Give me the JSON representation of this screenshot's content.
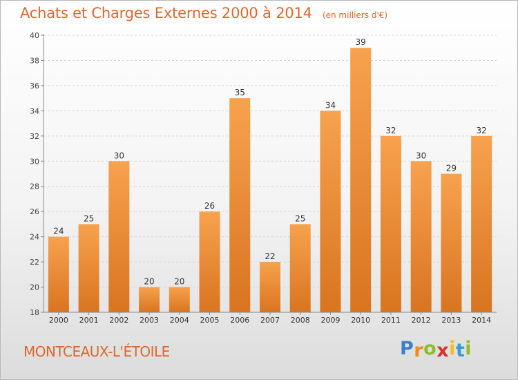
{
  "chart_data": {
    "type": "bar",
    "title": "Achats et Charges Externes 2000 à 2014",
    "subtitle": "(en milliers d'€)",
    "categories": [
      "2000",
      "2001",
      "2002",
      "2003",
      "2004",
      "2005",
      "2006",
      "2007",
      "2008",
      "2009",
      "2010",
      "2011",
      "2012",
      "2013",
      "2014"
    ],
    "values": [
      24,
      25,
      30,
      20,
      20,
      26,
      35,
      22,
      25,
      34,
      39,
      32,
      30,
      29,
      32
    ],
    "ylim": [
      18,
      40
    ],
    "yticks": [
      18,
      20,
      22,
      24,
      26,
      28,
      30,
      32,
      34,
      36,
      38,
      40
    ],
    "grid": true,
    "bar_color_light": "#f7a24e",
    "bar_color_dark": "#d9741f"
  },
  "location": "MONTCEAUX-L'ÉTOILE",
  "brand": {
    "letters": [
      "P",
      "r",
      "o",
      "x",
      "i",
      "t",
      "i"
    ],
    "colors": [
      "#3a7fc9",
      "#f08a1c",
      "#8dbd2f",
      "#d8312c",
      "#f0c020",
      "#3a9ad9",
      "#8dbd2f"
    ]
  }
}
